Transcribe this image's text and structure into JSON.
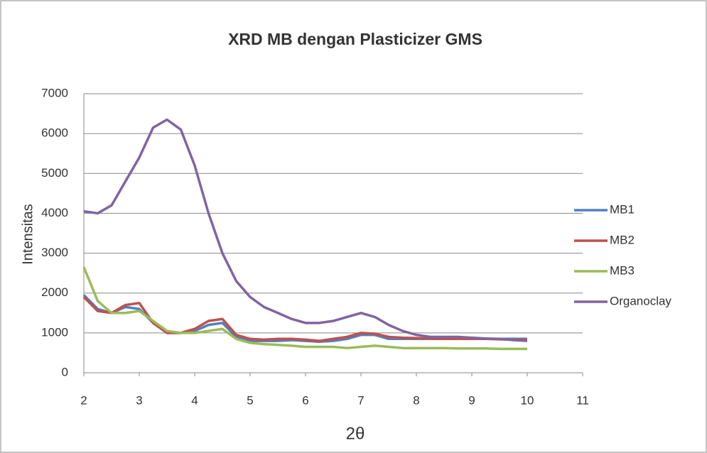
{
  "chart_data": {
    "type": "line",
    "title": "XRD MB dengan Plasticizer GMS",
    "x_label": "2θ",
    "y_label": "Intensitas",
    "x": [
      2,
      2.25,
      2.5,
      2.75,
      3,
      3.25,
      3.5,
      3.75,
      4,
      4.25,
      4.5,
      4.75,
      5,
      5.25,
      5.5,
      5.75,
      6,
      6.25,
      6.5,
      6.75,
      7,
      7.25,
      7.5,
      7.75,
      8,
      8.25,
      8.5,
      8.75,
      9,
      9.25,
      9.5,
      9.75,
      10
    ],
    "series": [
      {
        "name": "MB1",
        "color": "#4f81bd",
        "values": [
          1950,
          1600,
          1500,
          1650,
          1600,
          1250,
          1000,
          1000,
          1050,
          1200,
          1250,
          900,
          800,
          800,
          800,
          820,
          800,
          780,
          800,
          850,
          950,
          950,
          850,
          850,
          850,
          850,
          850,
          850,
          850,
          850,
          850,
          850,
          850
        ]
      },
      {
        "name": "MB2",
        "color": "#c0504d",
        "values": [
          1900,
          1550,
          1500,
          1700,
          1750,
          1250,
          1000,
          1000,
          1100,
          1300,
          1350,
          950,
          850,
          830,
          850,
          850,
          830,
          800,
          850,
          900,
          1000,
          980,
          900,
          880,
          870,
          860,
          850,
          850,
          850,
          850,
          840,
          830,
          830
        ]
      },
      {
        "name": "MB3",
        "color": "#9bbb59",
        "values": [
          2650,
          1800,
          1500,
          1500,
          1550,
          1300,
          1050,
          1000,
          1000,
          1050,
          1100,
          850,
          750,
          720,
          700,
          680,
          650,
          650,
          650,
          620,
          650,
          680,
          650,
          620,
          620,
          620,
          620,
          610,
          610,
          610,
          600,
          600,
          600
        ]
      },
      {
        "name": "Organoclay",
        "color": "#8064a2",
        "values": [
          4050,
          4000,
          4200,
          4800,
          5400,
          6150,
          6350,
          6100,
          5200,
          4000,
          3000,
          2300,
          1900,
          1650,
          1500,
          1350,
          1250,
          1250,
          1300,
          1400,
          1500,
          1400,
          1200,
          1050,
          950,
          900,
          900,
          900,
          880,
          860,
          850,
          820,
          800
        ]
      }
    ],
    "xlim": [
      2,
      11
    ],
    "xticks": [
      2,
      3,
      4,
      5,
      6,
      7,
      8,
      9,
      10,
      11
    ],
    "ylim": [
      0,
      7000
    ],
    "yticks": [
      0,
      1000,
      2000,
      3000,
      4000,
      5000,
      6000,
      7000
    ],
    "grid": true,
    "legend": "right"
  }
}
